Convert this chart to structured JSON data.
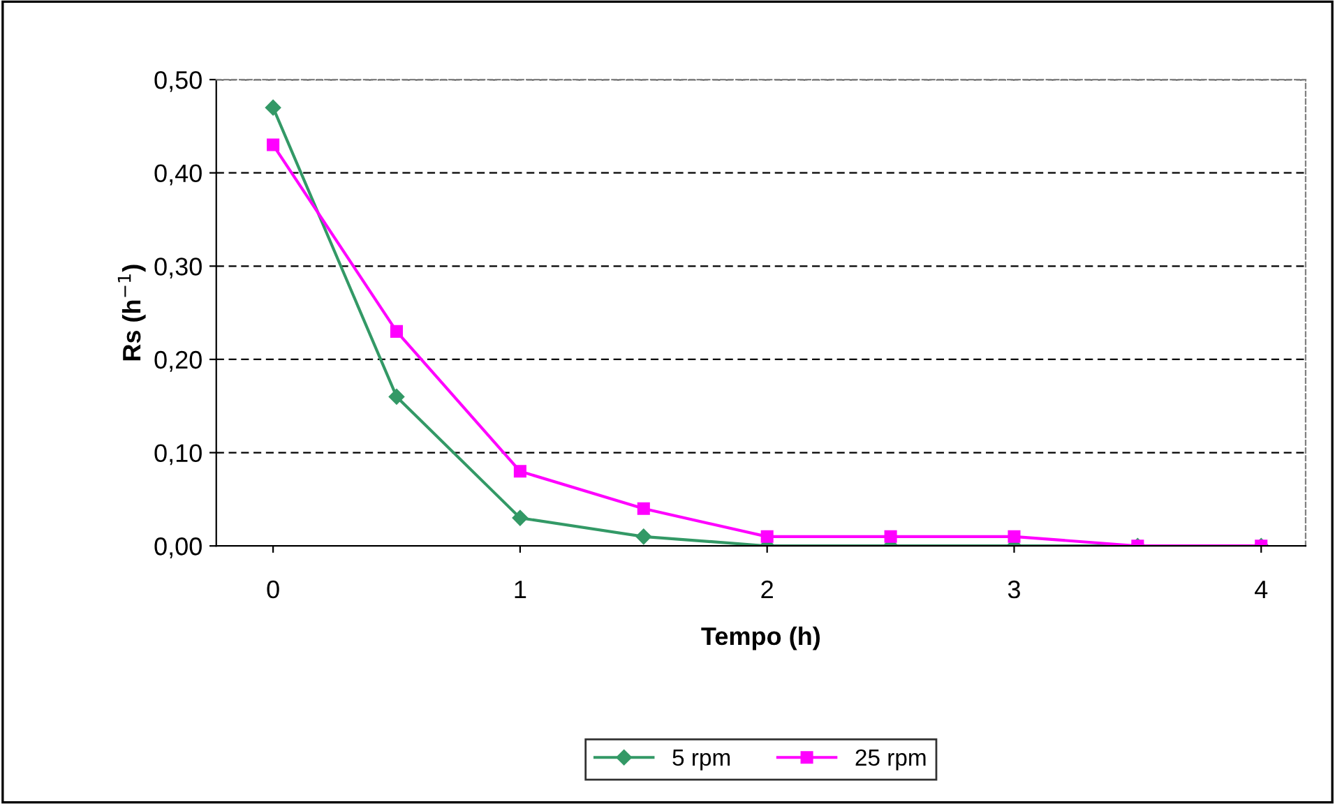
{
  "chart_data": {
    "type": "line",
    "xlabel": "Tempo (h)",
    "ylabel": "Rs (h$^{−1}$)",
    "x": [
      0,
      0.5,
      1,
      1.5,
      2,
      2.5,
      3,
      3.5,
      4
    ],
    "series": [
      {
        "name": "5 rpm",
        "color": "#339966",
        "marker": "diamond",
        "values": [
          0.47,
          0.16,
          0.03,
          0.01,
          0,
          0,
          0,
          0,
          0
        ]
      },
      {
        "name": "25 rpm",
        "color": "#ff00ff",
        "marker": "square",
        "values": [
          0.43,
          0.23,
          0.08,
          0.04,
          0.01,
          0.01,
          0.01,
          0,
          0
        ]
      }
    ],
    "xlim": [
      -0.23,
      4.18
    ],
    "xticks": [
      0,
      1,
      2,
      3,
      4
    ],
    "ylim": [
      0,
      0.5
    ],
    "yticks": [
      {
        "value": 0,
        "label": "0,00"
      },
      {
        "value": 0.1,
        "label": "0,10"
      },
      {
        "value": 0.2,
        "label": "0,20"
      },
      {
        "value": 0.3,
        "label": "0,30"
      },
      {
        "value": 0.4,
        "label": "0,40"
      },
      {
        "value": 0.5,
        "label": "0,50"
      }
    ],
    "grid": "y",
    "legend": "bottom",
    "line_style": "solid"
  }
}
